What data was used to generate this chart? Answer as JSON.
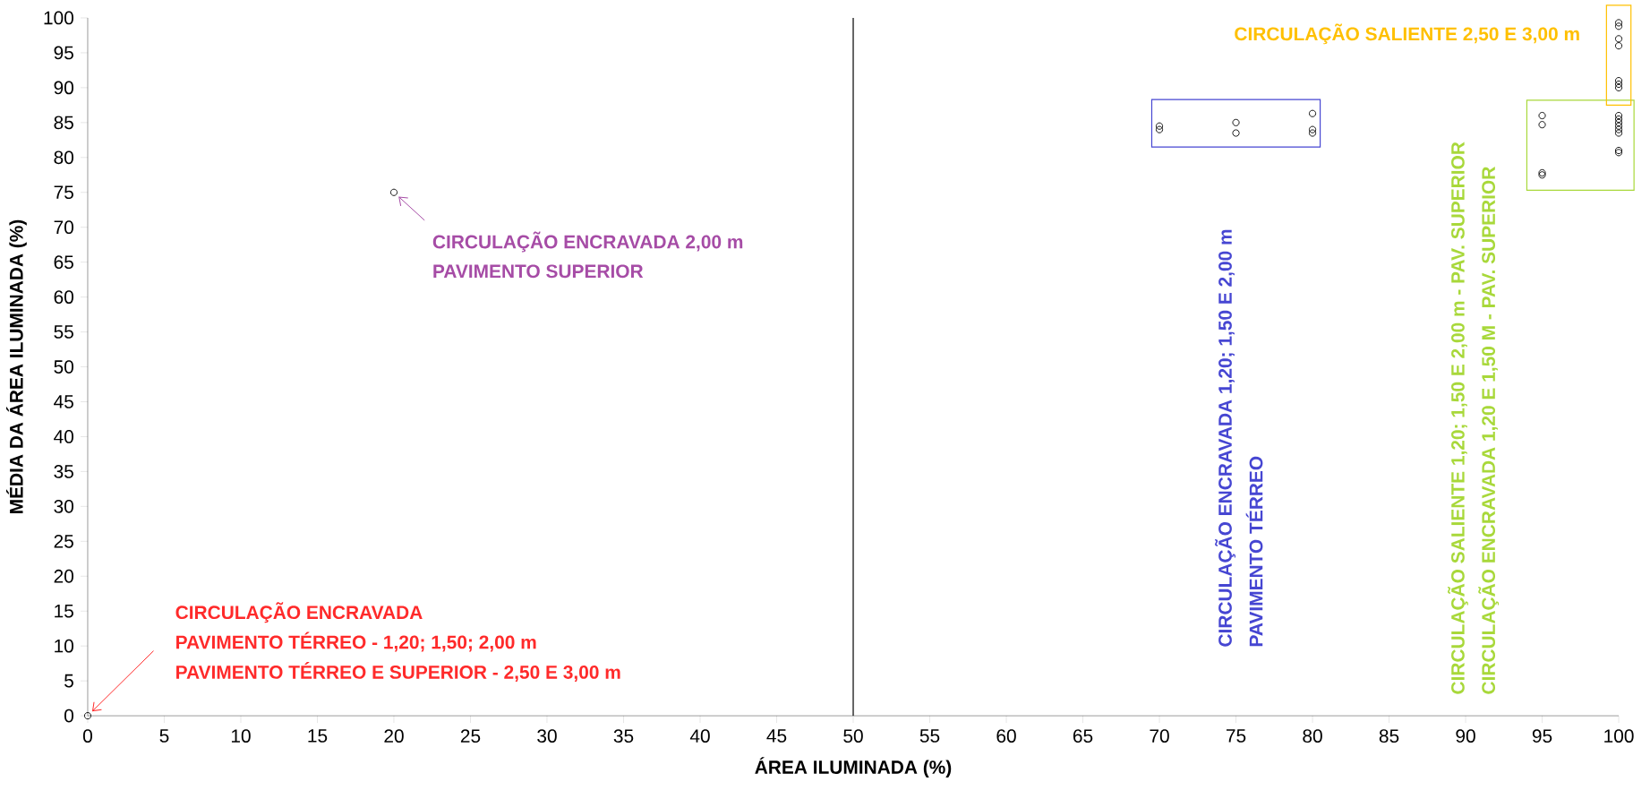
{
  "chart_data": {
    "type": "scatter",
    "xlabel": "ÁREA ILUMINADA (%)",
    "ylabel": "MÉDIA DA ÁREA ILUMINADA (%)",
    "xlim": [
      0,
      100
    ],
    "ylim": [
      0,
      100
    ],
    "xticks": [
      0,
      5,
      10,
      15,
      20,
      25,
      30,
      35,
      40,
      45,
      50,
      55,
      60,
      65,
      70,
      75,
      80,
      85,
      90,
      95,
      100
    ],
    "yticks": [
      0,
      5,
      10,
      15,
      20,
      25,
      30,
      35,
      40,
      45,
      50,
      55,
      60,
      65,
      70,
      75,
      80,
      85,
      90,
      95,
      100
    ],
    "marker": "circle",
    "grid": false,
    "ref_lines": [
      {
        "axis": "x",
        "value": 50,
        "color": "#000000"
      }
    ],
    "series": [
      {
        "color": "#000000",
        "x": [
          0
        ],
        "values": [
          0
        ]
      },
      {
        "color": "#000000",
        "x": [
          20
        ],
        "values": [
          75
        ]
      },
      {
        "color": "#000000",
        "x": [
          70,
          70,
          75,
          75,
          80,
          80,
          80
        ],
        "values": [
          84.5,
          84,
          85,
          83.5,
          86.3,
          84,
          83.5
        ]
      },
      {
        "color": "#000000",
        "x": [
          95,
          95,
          95,
          95,
          100,
          100,
          100,
          100,
          100,
          100,
          100,
          100
        ],
        "values": [
          86,
          84.7,
          77.8,
          77.5,
          86,
          85.5,
          85,
          84.5,
          84,
          83.5,
          81,
          80.7
        ]
      },
      {
        "color": "#000000",
        "x": [
          100,
          100,
          100,
          100,
          100,
          100,
          100
        ],
        "values": [
          99.3,
          98.8,
          97,
          96,
          91,
          90.5,
          90
        ]
      }
    ],
    "annotations": [
      "CIRCULAÇÃO ENCRAVADA",
      "PAVIMENTO TÉRREO - 1,20; 1,50; 2,00 m",
      "PAVIMENTO TÉRREO E SUPERIOR - 2,50 E 3,00 m",
      "CIRCULAÇÃO ENCRAVADA 2,00 m",
      "PAVIMENTO SUPERIOR",
      "CIRCULAÇÃO ENCRAVADA 1,20; 1,50 E 2,00 m",
      "PAVIMENTO TÉRREO",
      "CIRCULAÇÃO SALIENTE 1,20; 1,50 E 2,00 m - PAV. SUPERIOR",
      "CIRCULAÇÃO ENCRAVADA 1,20 E 1,50 M - PAV. SUPERIOR",
      "CIRCULAÇÃO SALIENTE 2,50 E 3,00 m"
    ]
  }
}
